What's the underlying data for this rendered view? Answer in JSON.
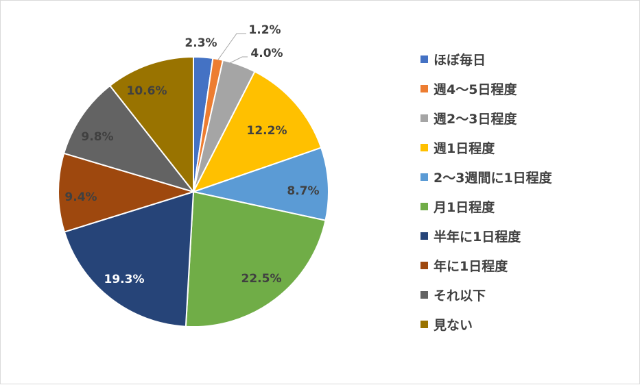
{
  "chart_data": {
    "type": "pie",
    "title": "",
    "legend_position": "right",
    "slices": [
      {
        "label": "ほぼ毎日",
        "value": 2.3,
        "display": "2.3%",
        "color": "#4472C4"
      },
      {
        "label": "週4〜5日程度",
        "value": 1.2,
        "display": "1.2%",
        "color": "#ED7D31"
      },
      {
        "label": "週2〜3日程度",
        "value": 4.0,
        "display": "4.0%",
        "color": "#A5A5A5"
      },
      {
        "label": "週1日程度",
        "value": 12.2,
        "display": "12.2%",
        "color": "#FFC000"
      },
      {
        "label": "2〜3週間に1日程度",
        "value": 8.7,
        "display": "8.7%",
        "color": "#5B9BD5"
      },
      {
        "label": "月1日程度",
        "value": 22.5,
        "display": "22.5%",
        "color": "#70AD47"
      },
      {
        "label": "半年に1日程度",
        "value": 19.3,
        "display": "19.3%",
        "color": "#264478"
      },
      {
        "label": "年に1日程度",
        "value": 9.4,
        "display": "9.4%",
        "color": "#9E480E"
      },
      {
        "label": "それ以下",
        "value": 9.8,
        "display": "9.8%",
        "color": "#636363"
      },
      {
        "label": "見ない",
        "value": 10.6,
        "display": "10.6%",
        "color": "#997300"
      }
    ]
  }
}
